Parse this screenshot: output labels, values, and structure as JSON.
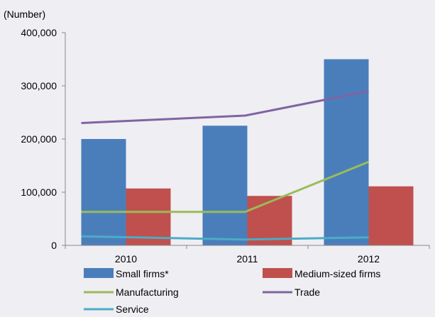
{
  "chart_data": {
    "type": "bar",
    "unit_label": "(Number)",
    "categories": [
      "2010",
      "2011",
      "2012"
    ],
    "y_tick_labels": [
      "0",
      "100,000",
      "200,000",
      "300,000",
      "400,000"
    ],
    "ylim": [
      0,
      400000
    ],
    "grid": false,
    "legend_position": "bottom",
    "series": [
      {
        "name": "Small firms*",
        "kind": "bar",
        "color": "#4a7ebb",
        "values": [
          200000,
          225000,
          350000
        ]
      },
      {
        "name": "Medium-sized firms",
        "kind": "bar",
        "color": "#c0504d",
        "values": [
          107000,
          93000,
          111000
        ]
      },
      {
        "name": "Manufacturing",
        "kind": "line",
        "color": "#9bbb59",
        "values": [
          63000,
          63000,
          157000
        ]
      },
      {
        "name": "Trade",
        "kind": "line",
        "color": "#8064a2",
        "values": [
          230000,
          244000,
          290000
        ]
      },
      {
        "name": "Service",
        "kind": "line",
        "color": "#4bacc6",
        "values": [
          17000,
          11000,
          15000
        ]
      }
    ]
  }
}
